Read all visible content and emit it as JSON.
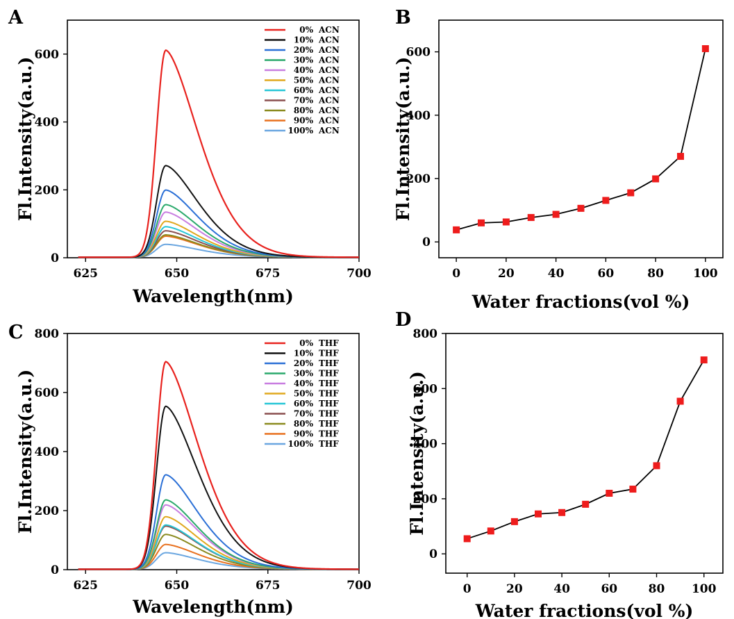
{
  "panel_letters": [
    "A",
    "B",
    "C",
    "D"
  ],
  "chart_data": [
    {
      "panel": "A",
      "type": "line",
      "xlabel": "Wavelength(nm)",
      "ylabel": "Fl.Intensity(a.u.)",
      "xlim": [
        620,
        700
      ],
      "ylim": [
        0,
        700
      ],
      "xticks": [
        625,
        650,
        675,
        700
      ],
      "yticks": [
        0,
        200,
        400,
        600
      ],
      "legend_position": "top-right",
      "peak_wavelength": 647,
      "series": [
        {
          "name": "0%",
          "solvent": "ACN",
          "peak": 610,
          "color": "#e8221e"
        },
        {
          "name": "10%",
          "solvent": "ACN",
          "peak": 270,
          "color": "#111111"
        },
        {
          "name": "20%",
          "solvent": "ACN",
          "peak": 198,
          "color": "#2a6fd6"
        },
        {
          "name": "30%",
          "solvent": "ACN",
          "peak": 155,
          "color": "#2aa96b"
        },
        {
          "name": "40%",
          "solvent": "ACN",
          "peak": 133,
          "color": "#c87de0"
        },
        {
          "name": "50%",
          "solvent": "ACN",
          "peak": 106,
          "color": "#e0a81e"
        },
        {
          "name": "60%",
          "solvent": "ACN",
          "peak": 90,
          "color": "#26c6d6"
        },
        {
          "name": "70%",
          "solvent": "ACN",
          "peak": 78,
          "color": "#8a4f4f"
        },
        {
          "name": "80%",
          "solvent": "ACN",
          "peak": 66,
          "color": "#8a8a1e"
        },
        {
          "name": "90%",
          "solvent": "ACN",
          "peak": 62,
          "color": "#e8701e"
        },
        {
          "name": "100%",
          "solvent": "ACN",
          "peak": 38,
          "color": "#6aa6e0"
        }
      ]
    },
    {
      "panel": "B",
      "type": "line",
      "xlabel": "Water fractions(vol %)",
      "ylabel": "Fl.Intensity(a.u.)",
      "xlim": [
        -7,
        107
      ],
      "ylim": [
        -50,
        700
      ],
      "xticks": [
        0,
        20,
        40,
        60,
        80,
        100
      ],
      "yticks": [
        0,
        200,
        400,
        600
      ],
      "marker_color": "#ee1c1c",
      "x": [
        0,
        10,
        20,
        30,
        40,
        50,
        60,
        70,
        80,
        90,
        100
      ],
      "y": [
        38,
        60,
        63,
        77,
        87,
        106,
        131,
        155,
        199,
        270,
        610
      ]
    },
    {
      "panel": "C",
      "type": "line",
      "xlabel": "Wavelength(nm)",
      "ylabel": "Fl.Intensity(a.u.)",
      "xlim": [
        620,
        700
      ],
      "ylim": [
        0,
        800
      ],
      "xticks": [
        625,
        650,
        675,
        700
      ],
      "yticks": [
        0,
        200,
        400,
        600,
        800
      ],
      "legend_position": "top-right",
      "peak_wavelength": 647,
      "series": [
        {
          "name": "0%",
          "solvent": "THF",
          "peak": 703,
          "color": "#e8221e"
        },
        {
          "name": "10%",
          "solvent": "THF",
          "peak": 552,
          "color": "#111111"
        },
        {
          "name": "20%",
          "solvent": "THF",
          "peak": 320,
          "color": "#2a6fd6"
        },
        {
          "name": "30%",
          "solvent": "THF",
          "peak": 235,
          "color": "#2aa96b"
        },
        {
          "name": "40%",
          "solvent": "THF",
          "peak": 218,
          "color": "#c87de0"
        },
        {
          "name": "50%",
          "solvent": "THF",
          "peak": 178,
          "color": "#e0a81e"
        },
        {
          "name": "60%",
          "solvent": "THF",
          "peak": 150,
          "color": "#26c6d6"
        },
        {
          "name": "70%",
          "solvent": "THF",
          "peak": 146,
          "color": "#8a4f4f"
        },
        {
          "name": "80%",
          "solvent": "THF",
          "peak": 118,
          "color": "#8a8a1e"
        },
        {
          "name": "90%",
          "solvent": "THF",
          "peak": 84,
          "color": "#e8701e"
        },
        {
          "name": "100%",
          "solvent": "THF",
          "peak": 56,
          "color": "#6aa6e0"
        }
      ]
    },
    {
      "panel": "D",
      "type": "line",
      "xlabel": "Water fractions(vol %)",
      "ylabel": "Fl.Intensity(a.u.)",
      "xlim": [
        -9,
        108
      ],
      "ylim": [
        -70,
        800
      ],
      "xticks": [
        0,
        20,
        40,
        60,
        80,
        100
      ],
      "yticks": [
        0,
        200,
        400,
        600,
        800
      ],
      "marker_color": "#ee1c1c",
      "x": [
        0,
        10,
        20,
        30,
        40,
        50,
        60,
        70,
        80,
        90,
        100
      ],
      "y": [
        55,
        83,
        117,
        145,
        150,
        180,
        220,
        235,
        320,
        554,
        704
      ]
    }
  ]
}
